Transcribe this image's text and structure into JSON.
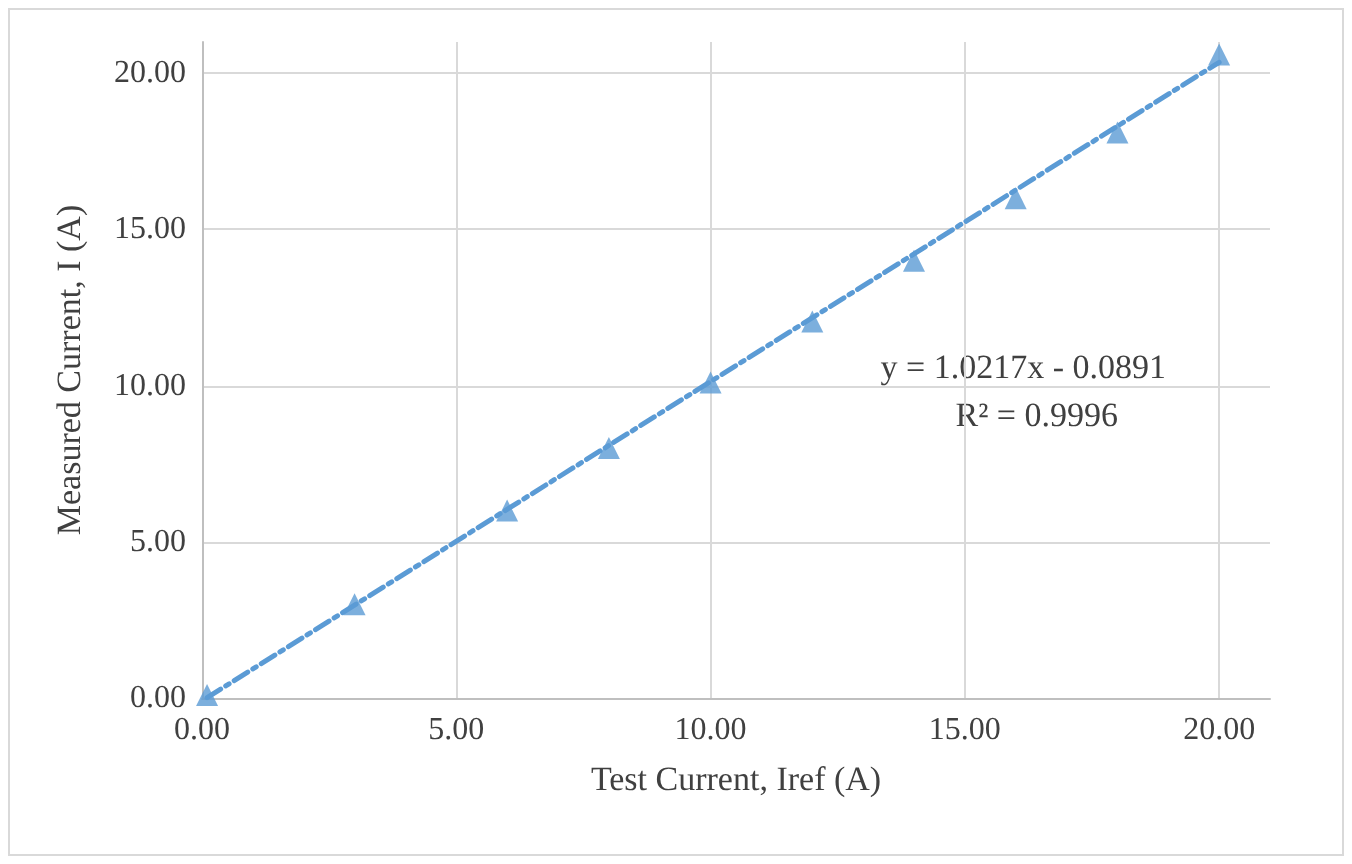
{
  "chart_data": {
    "type": "scatter",
    "xlabel": "Test Current, Iref (A)",
    "ylabel": "Measured Current, I (A)",
    "series": [
      {
        "color": "#5b9bd5",
        "marker": "triangle",
        "x": [
          0.1,
          3,
          6,
          8,
          10,
          12,
          14,
          16,
          18,
          20
        ],
        "values": [
          0.1,
          3.0,
          6.0,
          8.0,
          10.1,
          12.05,
          14.0,
          16.0,
          18.1,
          20.6
        ]
      },
      {
        "type": "line",
        "color": "#5b9bd5",
        "marker": "none",
        "line_style": "dashdot",
        "x": [
          0.1,
          20
        ],
        "values": [
          0.01,
          20.35
        ]
      }
    ],
    "annotations": [
      "y = 1.0217x - 0.0891",
      "R² = 0.9996"
    ],
    "xlim": [
      0,
      21
    ],
    "ylim": [
      0,
      21
    ],
    "xticks": [
      {
        "value": 0,
        "label": "0.00"
      },
      {
        "value": 5,
        "label": "5.00"
      },
      {
        "value": 10,
        "label": "10.00"
      },
      {
        "value": 15,
        "label": "15.00"
      },
      {
        "value": 20,
        "label": "20.00"
      }
    ],
    "yticks": [
      {
        "value": 0,
        "label": "0.00"
      },
      {
        "value": 5,
        "label": "5.00"
      },
      {
        "value": 10,
        "label": "10.00"
      },
      {
        "value": 15,
        "label": "15.00"
      },
      {
        "value": 20,
        "label": "20.00"
      }
    ],
    "grid": true
  }
}
